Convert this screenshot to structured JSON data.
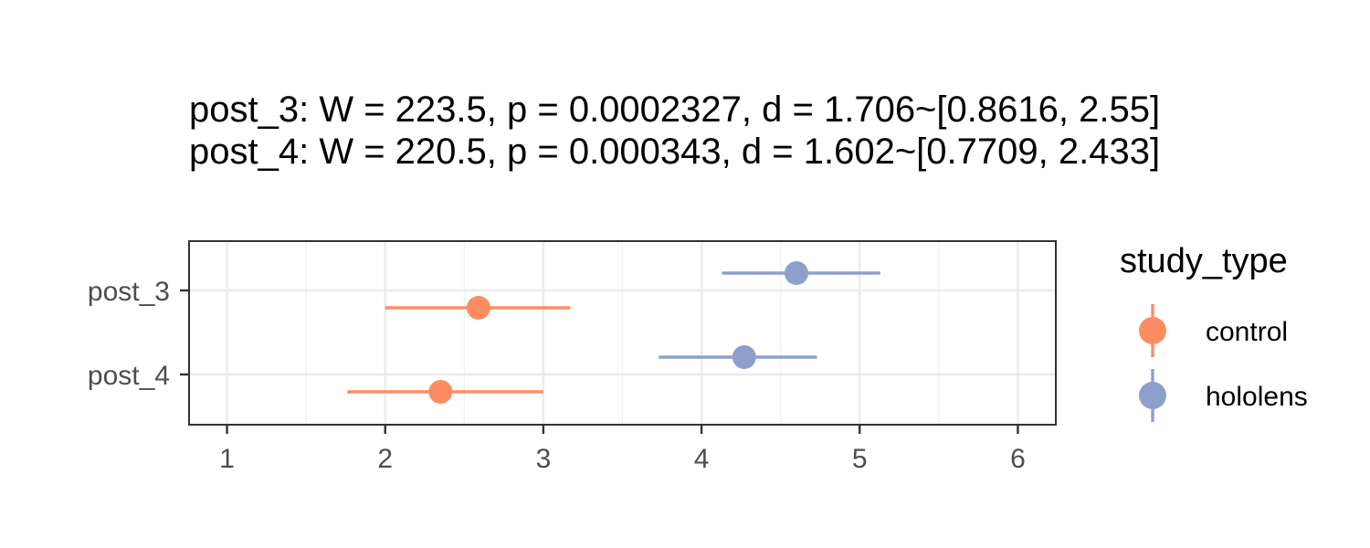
{
  "chart_data": {
    "type": "scatter",
    "title_lines": [
      "post_3: W = 223.5, p = 0.0002327, d = 1.706~[0.8616, 2.55]",
      "post_4: W = 220.5, p = 0.000343, d = 1.602~[0.7709, 2.433]"
    ],
    "xlim": [
      0.76,
      6.24
    ],
    "x_ticks": [
      1,
      2,
      3,
      4,
      5,
      6
    ],
    "categories": [
      "post_3",
      "post_4"
    ],
    "legend": {
      "title": "study_type",
      "position": "right"
    },
    "grid": true,
    "series": [
      {
        "name": "control",
        "color": "#fc8d62",
        "points": [
          {
            "category": "post_3",
            "mean": 2.59,
            "low": 2.0,
            "high": 3.17
          },
          {
            "category": "post_4",
            "mean": 2.35,
            "low": 1.76,
            "high": 3.0
          }
        ]
      },
      {
        "name": "hololens",
        "color": "#8da0cb",
        "points": [
          {
            "category": "post_3",
            "mean": 4.6,
            "low": 4.13,
            "high": 5.13
          },
          {
            "category": "post_4",
            "mean": 4.27,
            "low": 3.73,
            "high": 4.73
          }
        ]
      }
    ]
  }
}
